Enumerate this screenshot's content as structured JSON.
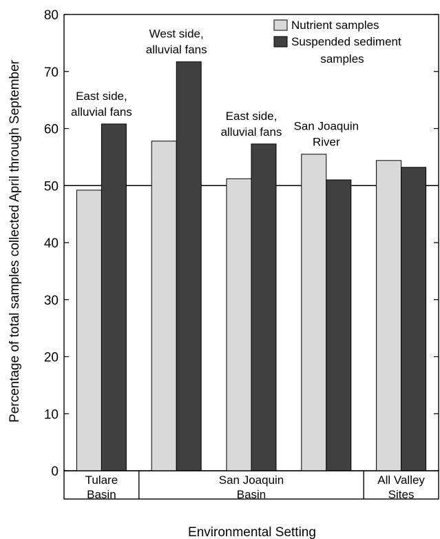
{
  "chart_data": {
    "type": "bar",
    "title": "",
    "xlabel": "Environmental Setting",
    "ylabel": "Percentage of total samples collected April through September",
    "ylim": [
      0,
      80
    ],
    "yticks": [
      0,
      10,
      20,
      30,
      40,
      50,
      60,
      70,
      80
    ],
    "reference_line": 50,
    "legend_position": "top-right",
    "categories": [
      "East side, alluvial fans",
      "West side, alluvial fans",
      "East side, alluvial fans",
      "San Joaquin River",
      "All Valley Sites"
    ],
    "series": [
      {
        "name": "Nutrient  samples",
        "color": "#d9d9d9",
        "values": [
          49.2,
          57.8,
          51.2,
          55.5,
          54.4
        ]
      },
      {
        "name": "Suspended sediment samples",
        "color": "#404040",
        "values": [
          60.8,
          71.7,
          57.3,
          51.0,
          53.2
        ]
      }
    ],
    "annotations": [
      {
        "lines": [
          "East side,",
          "alluvial fans"
        ],
        "category": 0
      },
      {
        "lines": [
          "West side,",
          "alluvial fans"
        ],
        "category": 1
      },
      {
        "lines": [
          "East side,",
          "alluvial fans"
        ],
        "category": 2
      },
      {
        "lines": [
          "San Joaquin",
          "River"
        ],
        "category": 3
      }
    ],
    "groups": [
      {
        "lines": [
          "Tulare",
          "Basin"
        ],
        "span": [
          0,
          0
        ]
      },
      {
        "lines": [
          "San Joaquin",
          "Basin"
        ],
        "span": [
          1,
          3
        ]
      },
      {
        "lines": [
          "All Valley",
          "Sites"
        ],
        "span": [
          4,
          4
        ]
      }
    ],
    "legend_lines": [
      [
        "Nutrient  samples"
      ],
      [
        "Suspended sediment",
        "samples"
      ]
    ]
  }
}
